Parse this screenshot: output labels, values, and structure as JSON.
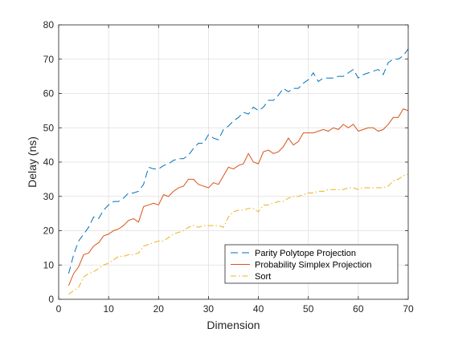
{
  "chart_data": {
    "type": "line",
    "title": "",
    "xlabel": "Dimension",
    "ylabel": "Delay (ns)",
    "xlim": [
      0,
      70
    ],
    "ylim": [
      0,
      80
    ],
    "xticks": [
      0,
      10,
      20,
      30,
      40,
      50,
      60,
      70
    ],
    "yticks": [
      0,
      10,
      20,
      30,
      40,
      50,
      60,
      70,
      80
    ],
    "xtick_labels": [
      "0",
      "10",
      "20",
      "30",
      "40",
      "50",
      "60",
      "70"
    ],
    "ytick_labels": [
      "0",
      "10",
      "20",
      "30",
      "40",
      "50",
      "60",
      "70",
      "80"
    ],
    "grid": true,
    "legend_position": "bottom-right",
    "x": [
      2,
      3,
      4,
      5,
      6,
      7,
      8,
      9,
      10,
      11,
      12,
      13,
      14,
      15,
      16,
      17,
      18,
      19,
      20,
      21,
      22,
      23,
      24,
      25,
      26,
      27,
      28,
      29,
      30,
      31,
      32,
      33,
      34,
      35,
      36,
      37,
      38,
      39,
      40,
      41,
      42,
      43,
      44,
      45,
      46,
      47,
      48,
      49,
      50,
      51,
      52,
      53,
      54,
      55,
      56,
      57,
      58,
      59,
      60,
      61,
      62,
      63,
      64,
      65,
      66,
      67,
      68,
      69,
      70
    ],
    "series": [
      {
        "name": "Parity Polytope Projection",
        "color": "#0072BD",
        "style": "dashed",
        "values": [
          7.5,
          13,
          17,
          19,
          21,
          24,
          23.5,
          26,
          27.5,
          28.5,
          28.5,
          29.5,
          31,
          31,
          31.5,
          33.5,
          38.5,
          38,
          38,
          39,
          39.5,
          40.5,
          41,
          41,
          42,
          44,
          45.5,
          45.5,
          48,
          47,
          46.5,
          49.5,
          50.5,
          52,
          53,
          54.5,
          54,
          56,
          55,
          56,
          58,
          58,
          59.5,
          61.5,
          60.5,
          61.5,
          61.5,
          63,
          64,
          66,
          63.5,
          64.5,
          64.5,
          64.5,
          65,
          65,
          66,
          67,
          64.5,
          65.5,
          66,
          66.5,
          67,
          65.5,
          69,
          70,
          70,
          71,
          73
        ]
      },
      {
        "name": "Probability Simplex Projection",
        "color": "#D95319",
        "style": "solid",
        "values": [
          4,
          7.5,
          9.5,
          13,
          13.5,
          15.5,
          16.5,
          18.5,
          19,
          20,
          20.5,
          21.5,
          23,
          23.5,
          22.5,
          27,
          27.5,
          28,
          27.5,
          30.5,
          30,
          31.5,
          32.5,
          33,
          35,
          35,
          33.5,
          33,
          32.5,
          34,
          33.5,
          36,
          38.5,
          38,
          39,
          39.5,
          42.5,
          40,
          39.5,
          43,
          43.5,
          42.5,
          43,
          44.5,
          47,
          45,
          46,
          48.5,
          48.5,
          48.5,
          49,
          49.5,
          49,
          50,
          49.5,
          51,
          50,
          51,
          49,
          49.5,
          50,
          50,
          49,
          49.5,
          51,
          53,
          53,
          55.5,
          55
        ]
      },
      {
        "name": "Sort",
        "color": "#EDB120",
        "style": "dashdot",
        "values": [
          1.5,
          2.5,
          3.5,
          6.5,
          7.5,
          8,
          9,
          10,
          10.5,
          11.5,
          12.5,
          12.5,
          13,
          13,
          13.5,
          15.5,
          16,
          16.5,
          17,
          17,
          18,
          19,
          19.5,
          20,
          21,
          21.5,
          21,
          21.5,
          21.5,
          21.5,
          21.5,
          21,
          24,
          25.5,
          26,
          26,
          26.5,
          26.5,
          25.5,
          27.5,
          27.5,
          28,
          28.5,
          28.5,
          29.5,
          30,
          30,
          30.5,
          31,
          31,
          31.5,
          31.5,
          32,
          32,
          32,
          32,
          32.5,
          32.5,
          32,
          32.5,
          32.5,
          32.5,
          32.5,
          32.5,
          33,
          34.5,
          35,
          36,
          36.5
        ]
      }
    ]
  }
}
